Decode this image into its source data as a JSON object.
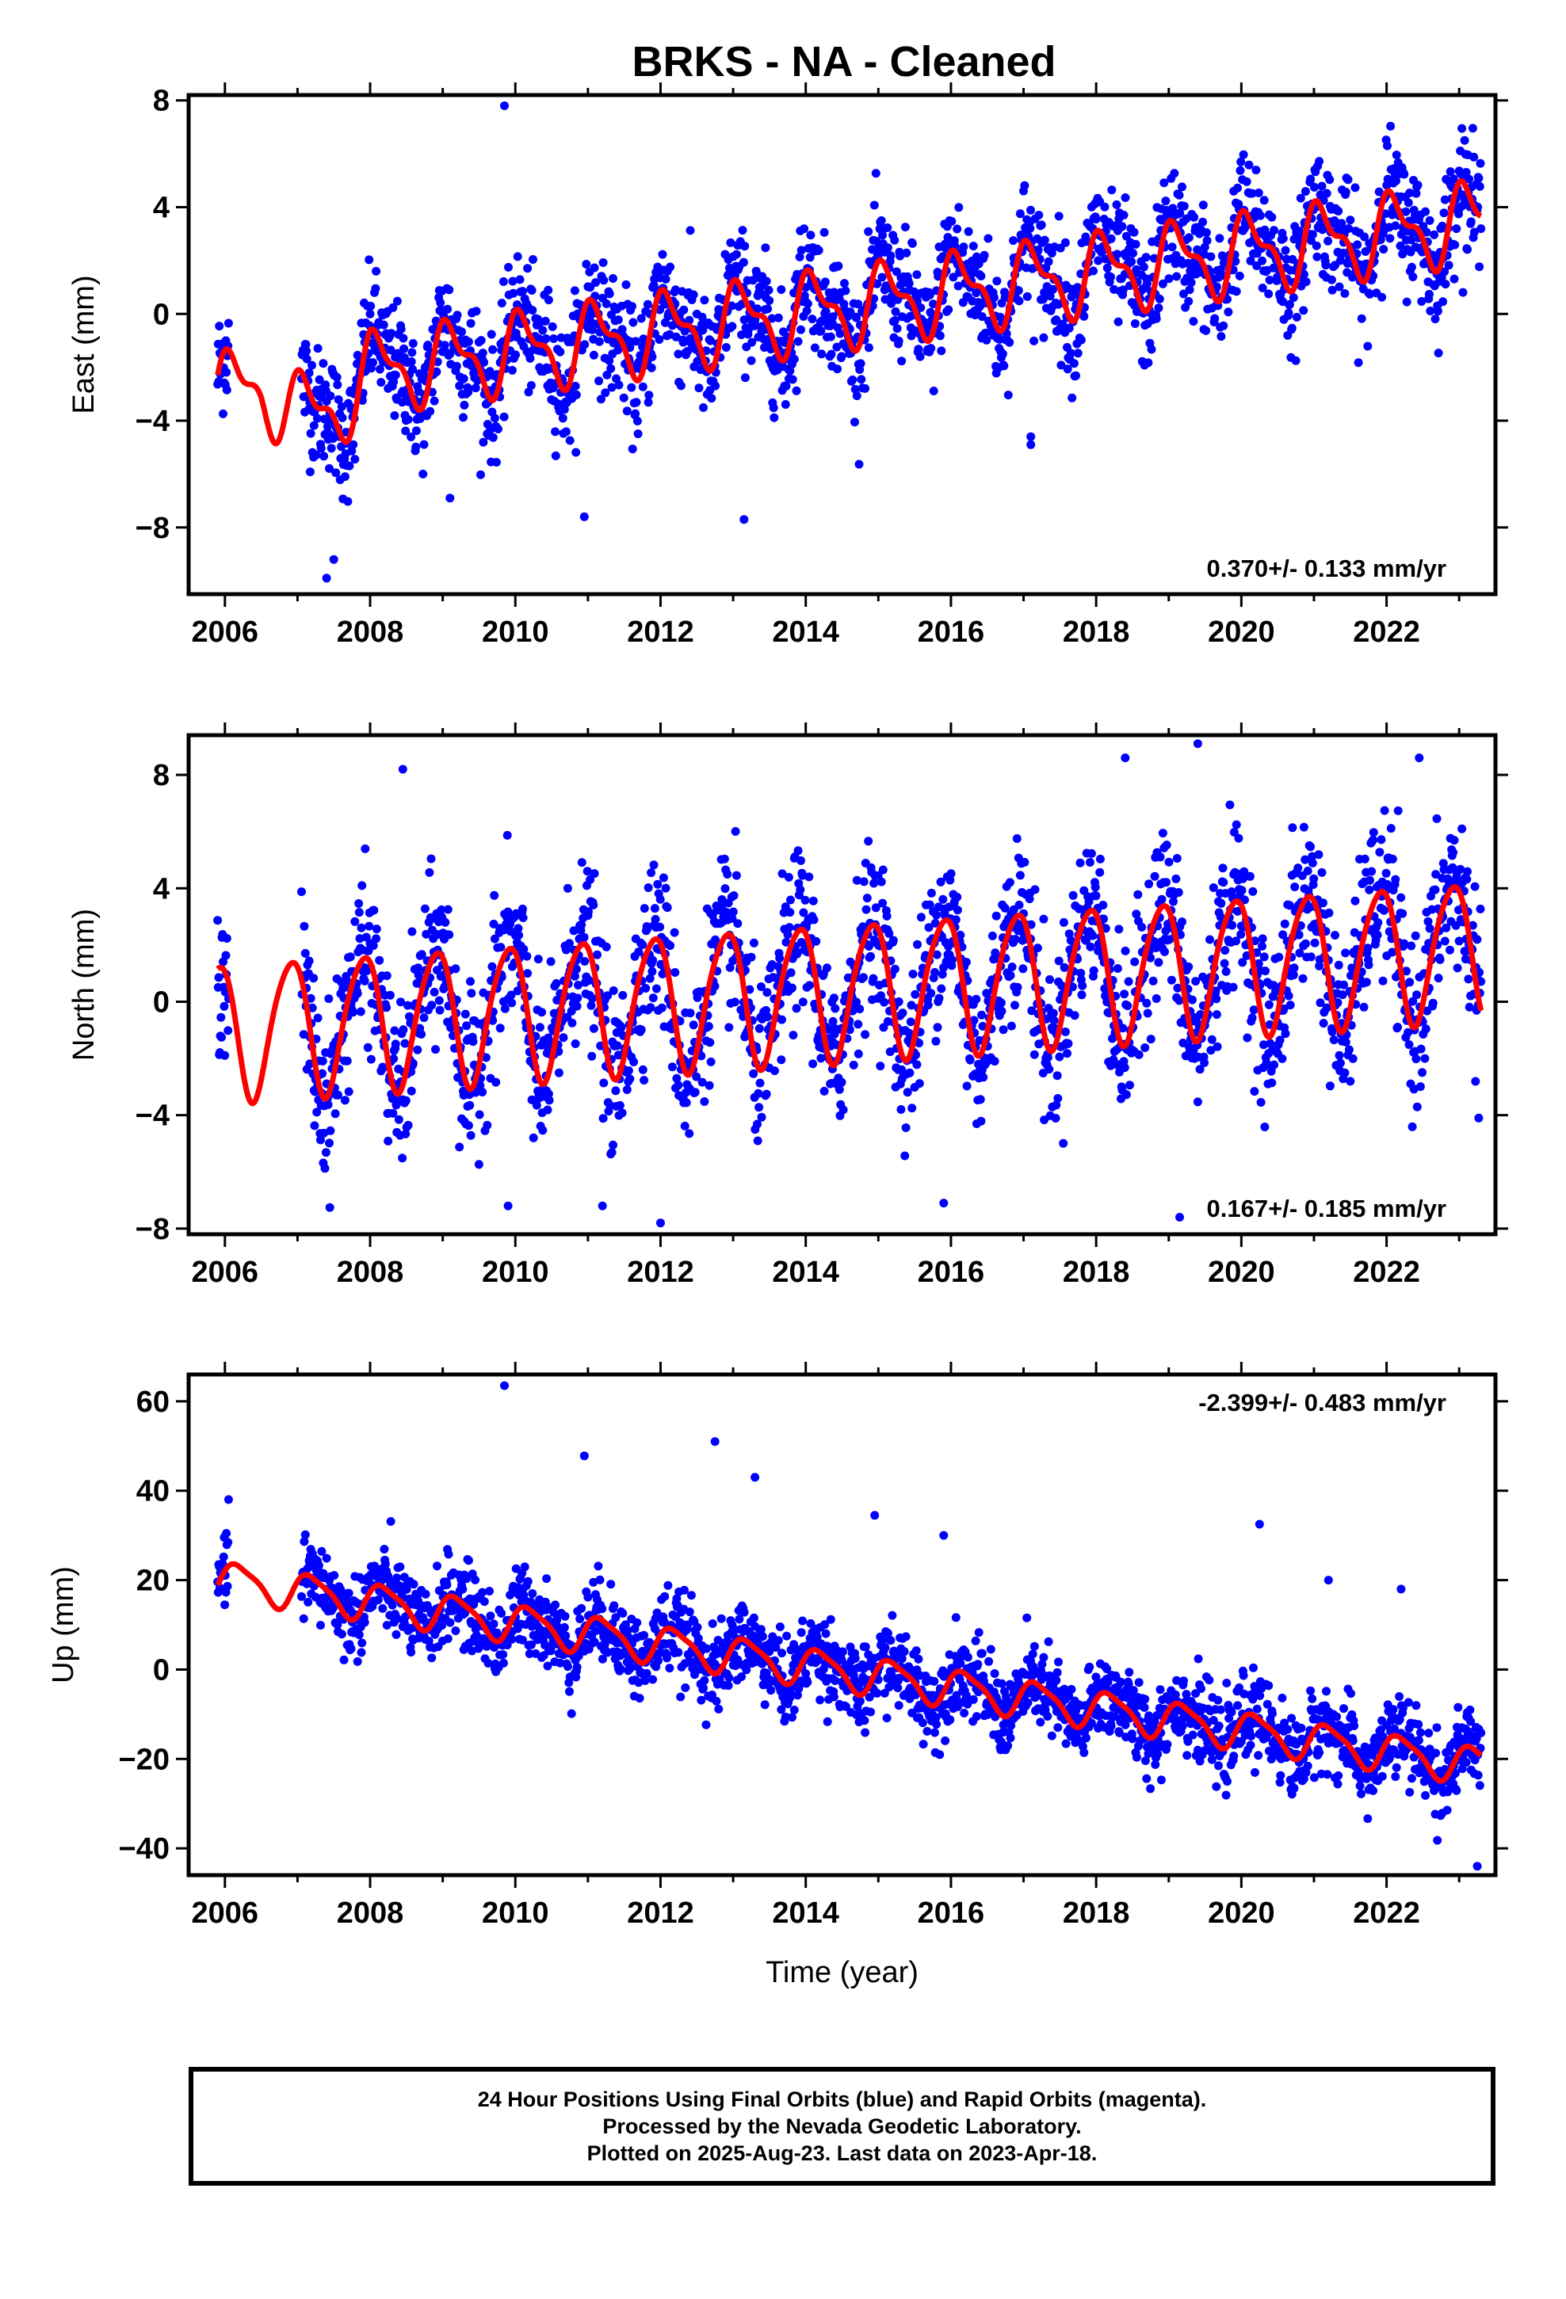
{
  "title": "BRKS  - NA - Cleaned",
  "colors": {
    "points": "#0000ff",
    "model": "#ff0000",
    "axes": "#000000"
  },
  "footer": {
    "line1": "24 Hour Positions Using Final Orbits (blue) and Rapid Orbits (magenta).",
    "line2": "Processed by the Nevada Geodetic Laboratory.",
    "line3": "Plotted on 2025-Aug-23. Last data on 2023-Apr-18."
  },
  "chart_data": [
    {
      "type": "scatter",
      "id": "east",
      "ylabel": "East (mm)",
      "xlabel": "",
      "xlim": [
        2005.5,
        2023.5
      ],
      "ylim": [
        -10.5,
        8.2
      ],
      "xticks": [
        2006,
        2008,
        2010,
        2012,
        2014,
        2016,
        2018,
        2020,
        2022
      ],
      "yticks": [
        -8,
        -4,
        0,
        4,
        8
      ],
      "velocity": "0.370+/- 0.133 mm/yr",
      "velocity_position": "bottom-right",
      "data_range": [
        2005.9,
        2023.3
      ],
      "model": {
        "intercept_2006": -2.9,
        "slope": 0.37,
        "ramp_2006_2008": -1.3,
        "annual_amp": 1.3,
        "annual_phase": 0.85,
        "semiannual_amp": 0.6,
        "semiannual_phase": 1.9
      },
      "scatter_spread": 1.1,
      "outliers": [
        [
          2009.85,
          7.8
        ],
        [
          2013.15,
          -7.7
        ],
        [
          2017.1,
          -4.6
        ],
        [
          2017.1,
          -4.9
        ],
        [
          2007.4,
          -9.9
        ],
        [
          2010.95,
          -7.6
        ],
        [
          2009.1,
          -6.9
        ],
        [
          2007.5,
          -9.2
        ]
      ]
    },
    {
      "type": "scatter",
      "id": "north",
      "ylabel": "North (mm)",
      "xlabel": "",
      "xlim": [
        2005.5,
        2023.5
      ],
      "ylim": [
        -8.2,
        9.4
      ],
      "xticks": [
        2006,
        2008,
        2010,
        2012,
        2014,
        2016,
        2018,
        2020,
        2022
      ],
      "yticks": [
        -8,
        -4,
        0,
        4,
        8
      ],
      "velocity": "0.167+/- 0.185 mm/yr",
      "velocity_position": "bottom-right",
      "data_range": [
        2005.9,
        2023.3
      ],
      "model": {
        "intercept_2006": -1.0,
        "slope": 0.167,
        "ramp_2006_2008": 0.0,
        "annual_amp": 2.4,
        "annual_phase": 2.2,
        "semiannual_amp": 0.3,
        "semiannual_phase": 0.4
      },
      "scatter_spread": 1.4,
      "outliers": [
        [
          2008.45,
          8.2
        ],
        [
          2019.4,
          9.1
        ],
        [
          2018.4,
          8.6
        ],
        [
          2022.45,
          8.6
        ],
        [
          2012.0,
          -7.8
        ],
        [
          2009.9,
          -7.2
        ],
        [
          2011.2,
          -7.2
        ],
        [
          2019.15,
          -7.6
        ],
        [
          2015.9,
          -7.1
        ]
      ]
    },
    {
      "type": "scatter",
      "id": "up",
      "ylabel": "Up (mm)",
      "xlabel": "Time (year)",
      "xlim": [
        2005.5,
        2023.5
      ],
      "ylim": [
        -46,
        66
      ],
      "xticks": [
        2006,
        2008,
        2010,
        2012,
        2014,
        2016,
        2018,
        2020,
        2022
      ],
      "yticks": [
        -40,
        -20,
        0,
        20,
        40,
        60
      ],
      "velocity": "-2.399+/- 0.483 mm/yr",
      "velocity_position": "top-right",
      "data_range": [
        2005.9,
        2023.3
      ],
      "model": {
        "intercept_2006": 20.0,
        "slope": -2.399,
        "ramp_2006_2008": 0.0,
        "annual_amp": 4.0,
        "annual_phase": 0.3,
        "semiannual_amp": 1.0,
        "semiannual_phase": 1.2
      },
      "scatter_spread": 4.5,
      "outliers": [
        [
          2009.85,
          63.5
        ],
        [
          2012.75,
          51
        ],
        [
          2010.95,
          47.8
        ],
        [
          2013.3,
          43
        ],
        [
          2014.95,
          34.5
        ],
        [
          2015.9,
          30
        ],
        [
          2020.25,
          32.5
        ],
        [
          2021.2,
          20
        ],
        [
          2022.2,
          18
        ],
        [
          2023.25,
          -44
        ]
      ]
    }
  ]
}
